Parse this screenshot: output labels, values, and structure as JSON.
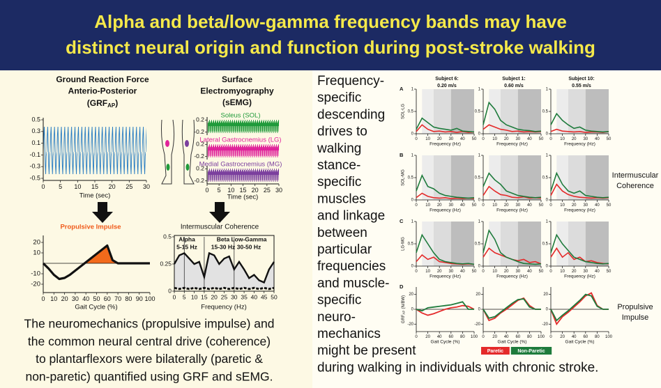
{
  "header": {
    "title_lines": [
      "Alpha and beta/low-gamma frequency bands may have",
      "distinct neural origin and function during post-stroke walking"
    ]
  },
  "grf": {
    "title_lines": [
      "Ground Reaction Force",
      "Anterio-Posterior"
    ],
    "label_open": "(GRF",
    "label_sub": "AP",
    "label_close": ")",
    "ylim": [
      -0.5,
      0.5
    ],
    "yticks": [
      0.5,
      0.3,
      0.1,
      -0.1,
      -0.3,
      -0.5
    ],
    "xlim": [
      0,
      30
    ],
    "xticks": [
      0,
      5,
      10,
      15,
      20,
      25,
      30
    ],
    "xlabel": "Time (sec)",
    "color": "#1f77c0"
  },
  "semg": {
    "title_lines": [
      "Surface",
      "Electromyography",
      "(sEMG)"
    ],
    "muscles": [
      {
        "name": "Soleus (SOL)",
        "color": "#1f9a3a"
      },
      {
        "name": "Lateral Gastrocnemius (LG)",
        "color": "#e0239a"
      },
      {
        "name": "Medial Gastrocnemius (MG)",
        "color": "#7b3f9e"
      }
    ],
    "ylim": [
      -0.3,
      0.3
    ],
    "yticks": [
      0.2,
      -0.2
    ],
    "xlim": [
      0,
      30
    ],
    "xticks": [
      0,
      5,
      10,
      15,
      20,
      25,
      30
    ],
    "xlabel": "Time (sec)"
  },
  "impulse": {
    "title": "Propulsive Impulse",
    "title_color": "#f05a1a",
    "x": [
      0,
      5,
      10,
      15,
      20,
      25,
      30,
      35,
      40,
      45,
      50,
      55,
      60,
      65,
      70,
      75,
      80,
      85,
      90,
      95,
      100
    ],
    "values": [
      0,
      -5,
      -11,
      -15,
      -14,
      -11,
      -7,
      -3,
      1,
      5,
      9,
      13,
      17,
      3,
      0,
      0,
      0,
      0,
      0,
      0,
      0
    ],
    "ylim": [
      -25,
      25
    ],
    "yticks": [
      20,
      10,
      -10,
      -20
    ],
    "xlim": [
      0,
      100
    ],
    "xticks": [
      0,
      10,
      20,
      30,
      40,
      50,
      60,
      70,
      80,
      90,
      100
    ],
    "xlabel": "Gait Cycle (%)",
    "color": "#111111",
    "fill": "#f26a1b"
  },
  "coherence": {
    "title": "Intermuscular Coherence",
    "x": [
      0,
      2.5,
      5,
      7.5,
      10,
      12.5,
      15,
      17.5,
      20,
      22.5,
      25,
      27.5,
      30,
      32.5,
      35,
      37.5,
      40,
      42.5,
      45,
      47.5,
      50
    ],
    "series": [
      {
        "values": [
          0.25,
          0.33,
          0.35,
          0.3,
          0.25,
          0.27,
          0.13,
          0.35,
          0.33,
          0.25,
          0.3,
          0.32,
          0.2,
          0.27,
          0.2,
          0.12,
          0.15,
          0.1,
          0.08,
          0.2,
          0.27
        ]
      },
      {
        "values": [
          0.03,
          0.02,
          0.03,
          0.02,
          0.03,
          0.02,
          0.03,
          0.02,
          0.03,
          0.02,
          0.03,
          0.02,
          0.03,
          0.02,
          0.03,
          0.02,
          0.03,
          0.02,
          0.03,
          0.02,
          0.03
        ]
      }
    ],
    "ylim": [
      0,
      0.5
    ],
    "yticks": [
      0.5,
      0.25,
      0
    ],
    "xlim": [
      0,
      50
    ],
    "xticks": [
      0,
      5,
      10,
      15,
      20,
      25,
      30,
      35,
      40,
      45,
      50
    ],
    "xlabel": "Frequency (Hz)",
    "band_lines": [
      5,
      15,
      30
    ],
    "bands": [
      {
        "name": "Alpha",
        "range": "5-15 Hz"
      },
      {
        "name": "Beta",
        "range": "15-30 Hz"
      },
      {
        "name": "Low-Gamma",
        "range": "30-50 Hz"
      }
    ]
  },
  "summary_left": {
    "lines": [
      "The neuromechanics (propulsive impulse) and",
      "the common neural central drive (coherence)",
      "to plantarflexors were bilaterally (paretic &",
      "non-paretic) quantified using GRF and sEMG."
    ]
  },
  "summary_right": {
    "lines": [
      "Frequency-",
      "specific",
      "descending",
      "drives to",
      "walking",
      "stance-",
      "specific",
      "muscles",
      "and linkage",
      "between",
      "particular",
      "frequencies",
      "and muscle-",
      "specific",
      "neuro-",
      "mechanics",
      "might be present",
      "during walking in individuals with chronic stroke."
    ]
  },
  "panels": {
    "subjects": [
      {
        "name": "Subject 6:",
        "speed": "0.20 m/s"
      },
      {
        "name": "Subject 1:",
        "speed": "0.60 m/s"
      },
      {
        "name": "Subject 10:",
        "speed": "0.55 m/s"
      }
    ],
    "series": [
      {
        "name": "Paretic",
        "color": "#e42a2a"
      },
      {
        "name": "Non-Paretic",
        "color": "#1e7b3c"
      }
    ],
    "freq": [
      0,
      5,
      10,
      15,
      20,
      25,
      30,
      35,
      40,
      45,
      50
    ],
    "coh_ylim": [
      0,
      1
    ],
    "coh_yticks": [
      1,
      0.5,
      0
    ],
    "coh_xlim": [
      0,
      50
    ],
    "coh_xticks": [
      0,
      10,
      20,
      30,
      40,
      50
    ],
    "coh_xlabel": "Frequency (Hz)",
    "band_edges": [
      5,
      15,
      30,
      50
    ],
    "band_colors": [
      "#ececec",
      "#dcdcdc",
      "#bdbdbd"
    ],
    "gait": [
      0,
      10,
      20,
      30,
      40,
      50,
      60,
      70,
      80,
      90,
      100
    ],
    "gait_ylim": [
      -30,
      30
    ],
    "gait_yticks": [
      20,
      0,
      -20
    ],
    "gait_xlim": [
      0,
      100
    ],
    "gait_xticks": [
      0,
      20,
      40,
      60,
      80,
      100
    ],
    "gait_xlabel": "Gait Cycle (%)",
    "gait_ylabel": {
      "main": "GRF",
      "sub": "AP",
      "unit": "(N/BW)"
    },
    "rows": [
      {
        "letter": "A",
        "ylabel": "SOL-LG",
        "kind": "coherence",
        "plots": [
          {
            "series": [
              {
                "values": [
                  0.05,
                  0.2,
                  0.1,
                  0.05,
                  0.06,
                  0.04,
                  0.05,
                  0.03,
                  0.05,
                  0.03,
                  0.04
                ]
              },
              {
                "values": [
                  0.1,
                  0.35,
                  0.25,
                  0.15,
                  0.12,
                  0.1,
                  0.08,
                  0.12,
                  0.06,
                  0.05,
                  0.04
                ]
              }
            ]
          },
          {
            "series": [
              {
                "values": [
                  0.1,
                  0.2,
                  0.15,
                  0.1,
                  0.08,
                  0.05,
                  0.06,
                  0.04,
                  0.05,
                  0.04,
                  0.05
                ]
              },
              {
                "values": [
                  0.2,
                  0.7,
                  0.55,
                  0.3,
                  0.2,
                  0.15,
                  0.1,
                  0.08,
                  0.07,
                  0.05,
                  0.06
                ]
              }
            ]
          },
          {
            "series": [
              {
                "values": [
                  0.05,
                  0.1,
                  0.06,
                  0.05,
                  0.04,
                  0.05,
                  0.03,
                  0.04,
                  0.04,
                  0.03,
                  0.05
                ]
              },
              {
                "values": [
                  0.2,
                  0.45,
                  0.3,
                  0.2,
                  0.12,
                  0.15,
                  0.08,
                  0.06,
                  0.05,
                  0.04,
                  0.05
                ]
              }
            ]
          }
        ]
      },
      {
        "letter": "B",
        "ylabel": "SOL-MG",
        "kind": "coherence",
        "plots": [
          {
            "series": [
              {
                "values": [
                  0.05,
                  0.15,
                  0.08,
                  0.05,
                  0.04,
                  0.05,
                  0.03,
                  0.04,
                  0.03,
                  0.04,
                  0.03
                ]
              },
              {
                "values": [
                  0.2,
                  0.55,
                  0.3,
                  0.25,
                  0.15,
                  0.1,
                  0.08,
                  0.06,
                  0.05,
                  0.04,
                  0.05
                ]
              }
            ]
          },
          {
            "series": [
              {
                "values": [
                  0.1,
                  0.3,
                  0.2,
                  0.12,
                  0.1,
                  0.06,
                  0.05,
                  0.07,
                  0.04,
                  0.05,
                  0.04
                ]
              },
              {
                "values": [
                  0.3,
                  0.6,
                  0.45,
                  0.35,
                  0.2,
                  0.15,
                  0.1,
                  0.08,
                  0.06,
                  0.05,
                  0.06
                ]
              }
            ]
          },
          {
            "series": [
              {
                "values": [
                  0.1,
                  0.35,
                  0.2,
                  0.12,
                  0.08,
                  0.06,
                  0.05,
                  0.04,
                  0.05,
                  0.04,
                  0.05
                ]
              },
              {
                "values": [
                  0.2,
                  0.6,
                  0.35,
                  0.2,
                  0.15,
                  0.2,
                  0.1,
                  0.08,
                  0.06,
                  0.05,
                  0.06
                ]
              }
            ]
          }
        ]
      },
      {
        "letter": "C",
        "ylabel": "LG-MG",
        "kind": "coherence",
        "plots": [
          {
            "series": [
              {
                "values": [
                  0.1,
                  0.25,
                  0.15,
                  0.2,
                  0.1,
                  0.08,
                  0.06,
                  0.05,
                  0.04,
                  0.05,
                  0.04
                ]
              },
              {
                "values": [
                  0.3,
                  0.7,
                  0.5,
                  0.3,
                  0.15,
                  0.1,
                  0.08,
                  0.06,
                  0.05,
                  0.06,
                  0.04
                ]
              }
            ]
          },
          {
            "series": [
              {
                "values": [
                  0.2,
                  0.4,
                  0.3,
                  0.25,
                  0.2,
                  0.15,
                  0.12,
                  0.15,
                  0.08,
                  0.1,
                  0.05
                ]
              },
              {
                "values": [
                  0.3,
                  0.8,
                  0.6,
                  0.3,
                  0.2,
                  0.15,
                  0.1,
                  0.06,
                  0.05,
                  0.04,
                  0.05
                ]
              }
            ]
          },
          {
            "series": [
              {
                "values": [
                  0.2,
                  0.4,
                  0.2,
                  0.3,
                  0.15,
                  0.2,
                  0.1,
                  0.12,
                  0.08,
                  0.06,
                  0.05
                ]
              },
              {
                "values": [
                  0.3,
                  0.7,
                  0.5,
                  0.35,
                  0.2,
                  0.15,
                  0.1,
                  0.08,
                  0.06,
                  0.05,
                  0.06
                ]
              }
            ]
          }
        ]
      },
      {
        "letter": "D",
        "kind": "gait",
        "plots": [
          {
            "series": [
              {
                "values": [
                  0,
                  -5,
                  -8,
                  -6,
                  -3,
                  0,
                  2,
                  3,
                  5,
                  4,
                  0
                ]
              },
              {
                "values": [
                  0,
                  -2,
                  2,
                  3,
                  4,
                  5,
                  6,
                  8,
                  10,
                  0,
                  0
                ]
              }
            ]
          },
          {
            "series": [
              {
                "values": [
                  0,
                  -15,
                  -12,
                  -5,
                  0,
                  6,
                  12,
                  15,
                  5,
                  0,
                  0
                ]
              },
              {
                "values": [
                  0,
                  -12,
                  -10,
                  -4,
                  2,
                  8,
                  13,
                  14,
                  3,
                  0,
                  0
                ]
              }
            ]
          },
          {
            "series": [
              {
                "values": [
                  0,
                  -20,
                  -10,
                  -4,
                  3,
                  10,
                  18,
                  22,
                  5,
                  0,
                  0
                ]
              },
              {
                "values": [
                  0,
                  -15,
                  -8,
                  -2,
                  5,
                  12,
                  20,
                  18,
                  4,
                  0,
                  0
                ]
              }
            ]
          }
        ]
      }
    ],
    "side_labels": [
      {
        "lines": [
          "Intermuscular",
          "Coherence"
        ]
      },
      {
        "lines": [
          "Propulsive",
          "Impulse"
        ]
      }
    ]
  }
}
